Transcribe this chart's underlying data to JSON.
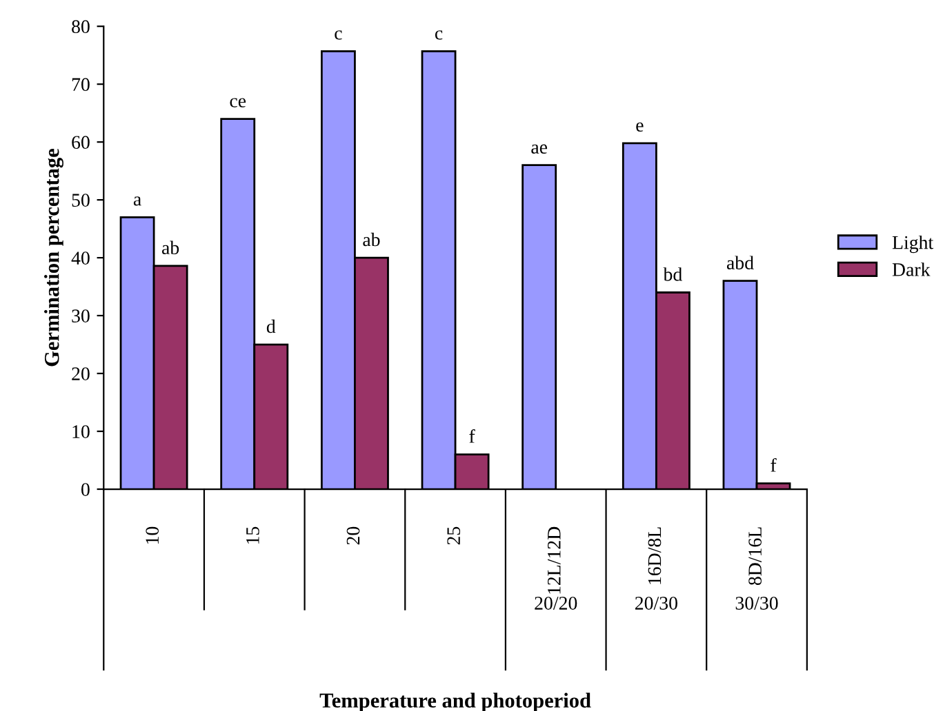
{
  "chart_data": {
    "type": "bar",
    "xlabel": "Temperature and photoperiod",
    "ylabel": "Germination percentage",
    "categories": [
      "10",
      "15",
      "20",
      "25",
      "12L/12D",
      "16D/8L",
      "8D/16L"
    ],
    "series": [
      {
        "name": "Light",
        "color": "#9999ff",
        "values": [
          47,
          64,
          75.7,
          75.7,
          56,
          59.8,
          36
        ],
        "value_labels": [
          "a",
          "ce",
          "c",
          "c",
          "ae",
          "e",
          "abd"
        ]
      },
      {
        "name": "Dark",
        "color": "#993366",
        "values": [
          38.6,
          25,
          40,
          6,
          null,
          34,
          1
        ],
        "value_labels": [
          "ab",
          "d",
          "ab",
          "f",
          null,
          "bd",
          "f"
        ]
      }
    ],
    "annotations": [
      "20/20",
      "20/30",
      "30/30"
    ],
    "ylim": [
      0,
      80
    ],
    "yticks": [
      0,
      10,
      20,
      30,
      40,
      50,
      60,
      70,
      80
    ],
    "legend": "right",
    "grid": false
  }
}
